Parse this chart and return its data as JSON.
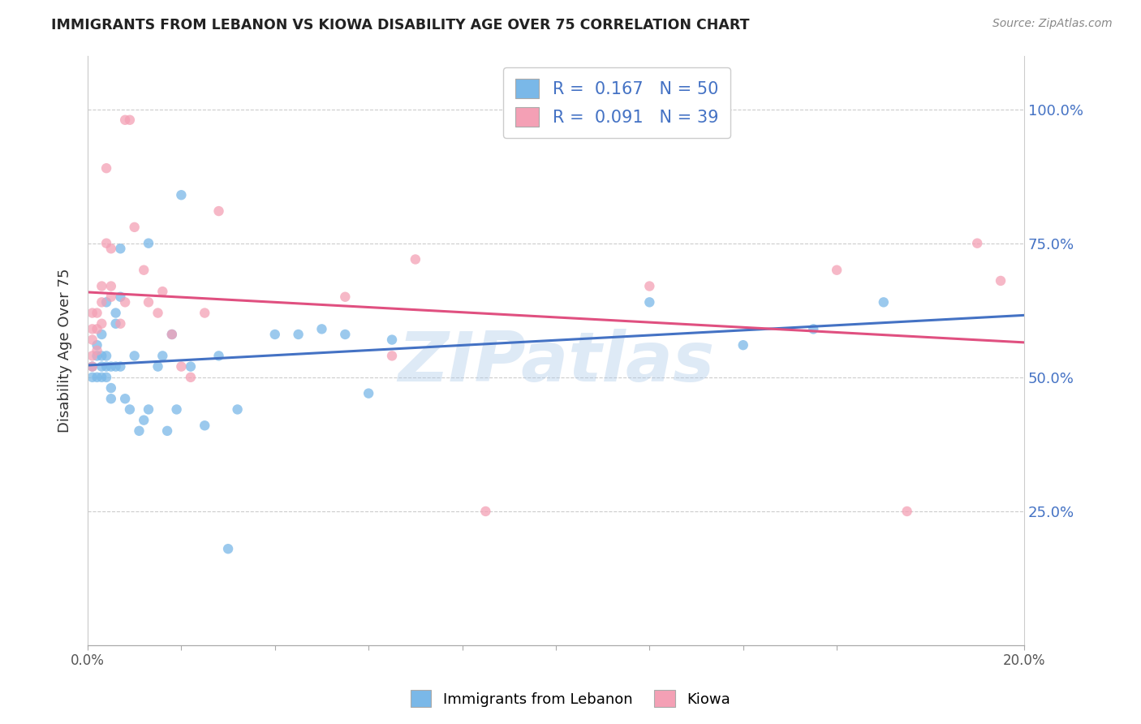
{
  "title": "IMMIGRANTS FROM LEBANON VS KIOWA DISABILITY AGE OVER 75 CORRELATION CHART",
  "source": "Source: ZipAtlas.com",
  "ylabel": "Disability Age Over 75",
  "xmin": 0.0,
  "xmax": 0.2,
  "ymin": 0.0,
  "ymax": 1.1,
  "yticks": [
    0.25,
    0.5,
    0.75,
    1.0
  ],
  "ytick_labels": [
    "25.0%",
    "50.0%",
    "75.0%",
    "100.0%"
  ],
  "xtick_labels": [
    "0.0%",
    "",
    "",
    "",
    "",
    "",
    "",
    "",
    "",
    "20.0%"
  ],
  "xticks": [
    0.0,
    0.02,
    0.04,
    0.06,
    0.08,
    0.1,
    0.12,
    0.14,
    0.16,
    0.2
  ],
  "blue_color": "#7ab8e8",
  "pink_color": "#f4a0b5",
  "blue_line_color": "#4472c4",
  "pink_line_color": "#e05080",
  "R_blue": 0.167,
  "N_blue": 50,
  "R_pink": 0.091,
  "N_pink": 39,
  "blue_scatter_x": [
    0.001,
    0.001,
    0.002,
    0.002,
    0.002,
    0.003,
    0.003,
    0.003,
    0.003,
    0.004,
    0.004,
    0.004,
    0.004,
    0.005,
    0.005,
    0.005,
    0.006,
    0.006,
    0.006,
    0.007,
    0.007,
    0.007,
    0.008,
    0.009,
    0.01,
    0.011,
    0.012,
    0.013,
    0.013,
    0.015,
    0.016,
    0.017,
    0.018,
    0.019,
    0.02,
    0.022,
    0.025,
    0.028,
    0.03,
    0.032,
    0.04,
    0.045,
    0.05,
    0.055,
    0.06,
    0.065,
    0.12,
    0.14,
    0.155,
    0.17
  ],
  "blue_scatter_y": [
    0.5,
    0.52,
    0.54,
    0.56,
    0.5,
    0.52,
    0.5,
    0.54,
    0.58,
    0.52,
    0.5,
    0.54,
    0.64,
    0.52,
    0.48,
    0.46,
    0.52,
    0.6,
    0.62,
    0.65,
    0.74,
    0.52,
    0.46,
    0.44,
    0.54,
    0.4,
    0.42,
    0.44,
    0.75,
    0.52,
    0.54,
    0.4,
    0.58,
    0.44,
    0.84,
    0.52,
    0.41,
    0.54,
    0.18,
    0.44,
    0.58,
    0.58,
    0.59,
    0.58,
    0.47,
    0.57,
    0.64,
    0.56,
    0.59,
    0.64
  ],
  "pink_scatter_x": [
    0.001,
    0.001,
    0.001,
    0.001,
    0.001,
    0.002,
    0.002,
    0.002,
    0.003,
    0.003,
    0.003,
    0.004,
    0.004,
    0.005,
    0.005,
    0.005,
    0.007,
    0.008,
    0.008,
    0.009,
    0.01,
    0.012,
    0.013,
    0.015,
    0.016,
    0.018,
    0.02,
    0.022,
    0.025,
    0.028,
    0.055,
    0.065,
    0.07,
    0.085,
    0.12,
    0.16,
    0.175,
    0.19,
    0.195
  ],
  "pink_scatter_y": [
    0.59,
    0.62,
    0.54,
    0.57,
    0.52,
    0.62,
    0.59,
    0.55,
    0.6,
    0.67,
    0.64,
    0.75,
    0.89,
    0.74,
    0.65,
    0.67,
    0.6,
    0.64,
    0.98,
    0.98,
    0.78,
    0.7,
    0.64,
    0.62,
    0.66,
    0.58,
    0.52,
    0.5,
    0.62,
    0.81,
    0.65,
    0.54,
    0.72,
    0.25,
    0.67,
    0.7,
    0.25,
    0.75,
    0.68
  ],
  "watermark": "ZIPatlas",
  "legend_blue_label": "Immigrants from Lebanon",
  "legend_pink_label": "Kiowa"
}
